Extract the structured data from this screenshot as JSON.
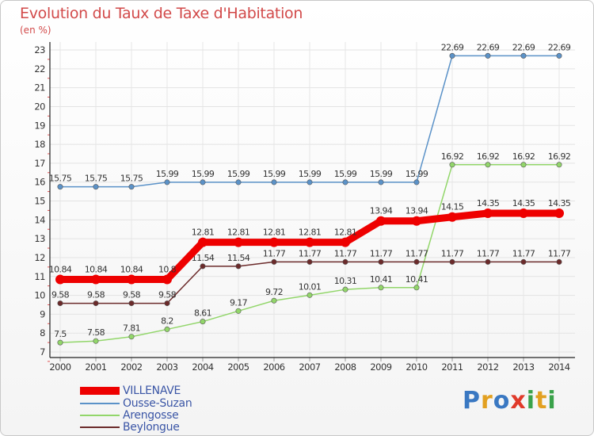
{
  "header": {
    "title": "Evolution du Taux de Taxe d'Habitation",
    "unit": "(en %)"
  },
  "logo": {
    "text": "Proxiti",
    "colors": [
      "#3a78c2",
      "#e2a020",
      "#3a78c2",
      "#e03a2a",
      "#3aa24a",
      "#e2a020",
      "#3aa24a"
    ]
  },
  "chart_data": {
    "type": "line",
    "x": [
      "2000",
      "2001",
      "2002",
      "2003",
      "2004",
      "2005",
      "2006",
      "2007",
      "2008",
      "2009",
      "2010",
      "2011",
      "2012",
      "2013",
      "2014"
    ],
    "ylim": [
      7,
      23
    ],
    "yticks": [
      "7",
      "8",
      "9",
      "10",
      "11",
      "12",
      "13",
      "14",
      "15",
      "16",
      "17",
      "18",
      "19",
      "20",
      "21",
      "22",
      "23"
    ],
    "grid": true,
    "legend_position": "bottom-left",
    "series": [
      {
        "name": "Ousse-Suzan",
        "color": "#5b92c8",
        "values": [
          15.75,
          15.75,
          15.75,
          15.99,
          15.99,
          15.99,
          15.99,
          15.99,
          15.99,
          15.99,
          15.99,
          22.69,
          22.69,
          22.69,
          22.69
        ],
        "labels": [
          "15.75",
          "15.75",
          "15.75",
          "15.99",
          "15.99",
          "15.99",
          "15.99",
          "15.99",
          "15.99",
          "15.99",
          "15.99",
          "22.69",
          "22.69",
          "22.69",
          "22.69"
        ]
      },
      {
        "name": "Arengosse",
        "color": "#92d66a",
        "values": [
          7.5,
          7.58,
          7.81,
          8.2,
          8.61,
          9.17,
          9.72,
          10.01,
          10.31,
          10.41,
          10.41,
          16.92,
          16.92,
          16.92,
          16.92
        ],
        "labels": [
          "7.5",
          "7.58",
          "7.81",
          "8.2",
          "8.61",
          "9.17",
          "9.72",
          "10.01",
          "10.31",
          "10.41",
          "10.41",
          "16.92",
          "16.92",
          "16.92",
          "16.92"
        ]
      },
      {
        "name": "Beylongue",
        "color": "#6b2a2a",
        "values": [
          9.58,
          9.58,
          9.58,
          9.58,
          11.54,
          11.54,
          11.77,
          11.77,
          11.77,
          11.77,
          11.77,
          11.77,
          11.77,
          11.77,
          11.77
        ],
        "labels": [
          "9.58",
          "9.58",
          "9.58",
          "9.58",
          "11.54",
          "11.54",
          "11.77",
          "11.77",
          "11.77",
          "11.77",
          "11.77",
          "11.77",
          "11.77",
          "11.77",
          "11.77"
        ]
      },
      {
        "name": "VILLENAVE",
        "color": "#ee0000",
        "values": [
          10.84,
          10.84,
          10.84,
          10.84,
          12.81,
          12.81,
          12.81,
          12.81,
          12.81,
          13.94,
          13.94,
          14.15,
          14.35,
          14.35,
          14.35
        ],
        "labels": [
          "10.84",
          "10.84",
          "10.84",
          "10.8",
          "12.81",
          "12.81",
          "12.81",
          "12.81",
          "12.81",
          "13.94",
          "13.94",
          "14.15",
          "14.35",
          "14.35",
          "14.35"
        ]
      }
    ]
  },
  "legend": [
    {
      "name": "VILLENAVE",
      "color": "#ee0000"
    },
    {
      "name": "Ousse-Suzan",
      "color": "#5b92c8"
    },
    {
      "name": "Arengosse",
      "color": "#92d66a"
    },
    {
      "name": "Beylongue",
      "color": "#6b2a2a"
    }
  ]
}
